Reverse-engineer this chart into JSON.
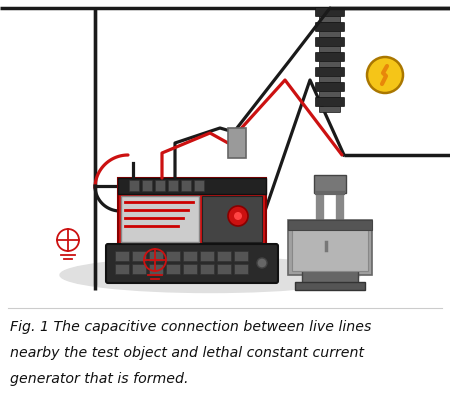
{
  "fig_width": 4.5,
  "fig_height": 4.17,
  "dpi": 100,
  "bg_color": "#ffffff",
  "caption_line1": "Fig. 1 The capacitive connection between live lines",
  "caption_line2": "nearby the test object and lethal constant current",
  "caption_line3": "generator that is formed.",
  "caption_fontsize": 10.2,
  "wire_black": "#1a1a1a",
  "wire_red": "#cc1111",
  "tester_red": "#cc1111",
  "tester_dark": "#333333",
  "ground_symbol_color": "#cc1111",
  "insulator_dark": "#2a2a2a",
  "insulator_gray": "#555555",
  "shadow_color": "#e0e0e0",
  "lightning_yellow": "#f5c518",
  "lightning_bolt": "#e8870a",
  "pole_color": "#111111",
  "connector_gray": "#999999",
  "stand_color": "#888888",
  "cabinet_color": "#a0a0a0",
  "cabinet_dark": "#555555"
}
